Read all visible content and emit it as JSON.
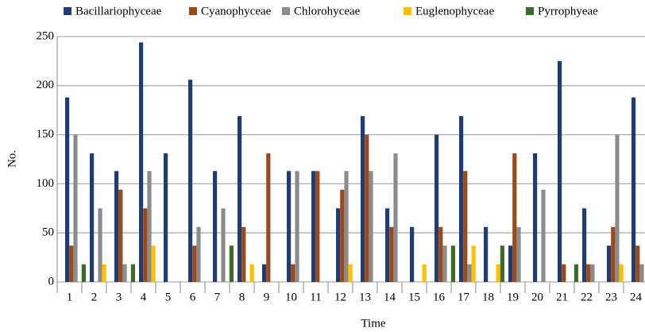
{
  "chart_data": {
    "type": "bar",
    "xlabel": "Time",
    "ylabel": "No.",
    "categories": [
      "1",
      "2",
      "3",
      "4",
      "5",
      "6",
      "7",
      "8",
      "9",
      "10",
      "11",
      "12",
      "13",
      "14",
      "15",
      "16",
      "17",
      "18",
      "19",
      "20",
      "21",
      "22",
      "23",
      "24"
    ],
    "series": [
      {
        "name": "Bacillariophyceae",
        "color": "#1f3c73",
        "values": [
          188,
          131,
          113,
          244,
          131,
          206,
          113,
          169,
          18,
          113,
          113,
          75,
          169,
          75,
          56,
          150,
          169,
          56,
          37,
          131,
          225,
          75,
          37,
          188
        ]
      },
      {
        "name": "Cyanophyceae",
        "color": "#9c4a1a",
        "values": [
          37,
          0,
          94,
          75,
          0,
          37,
          0,
          56,
          131,
          18,
          113,
          94,
          150,
          56,
          0,
          56,
          113,
          0,
          131,
          0,
          18,
          18,
          56,
          37
        ]
      },
      {
        "name": "Chlorohyceae",
        "color": "#8c8c8c",
        "values": [
          150,
          75,
          18,
          113,
          0,
          56,
          75,
          0,
          0,
          113,
          0,
          113,
          113,
          131,
          0,
          37,
          18,
          0,
          56,
          94,
          0,
          18,
          150,
          18
        ]
      },
      {
        "name": "Euglenophyceae",
        "color": "#ffc000",
        "values": [
          0,
          18,
          0,
          37,
          0,
          0,
          0,
          18,
          0,
          0,
          0,
          18,
          0,
          0,
          18,
          0,
          37,
          18,
          0,
          0,
          0,
          0,
          18,
          0
        ]
      },
      {
        "name": "Pyrrophyeae",
        "color": "#3d6b2a",
        "values": [
          18,
          0,
          18,
          0,
          0,
          0,
          37,
          0,
          0,
          0,
          0,
          0,
          0,
          0,
          0,
          37,
          0,
          37,
          0,
          0,
          18,
          0,
          0,
          0
        ]
      }
    ],
    "ylim": [
      0,
      250
    ],
    "yticks": [
      0,
      50,
      100,
      150,
      200,
      250
    ],
    "grid": true
  }
}
